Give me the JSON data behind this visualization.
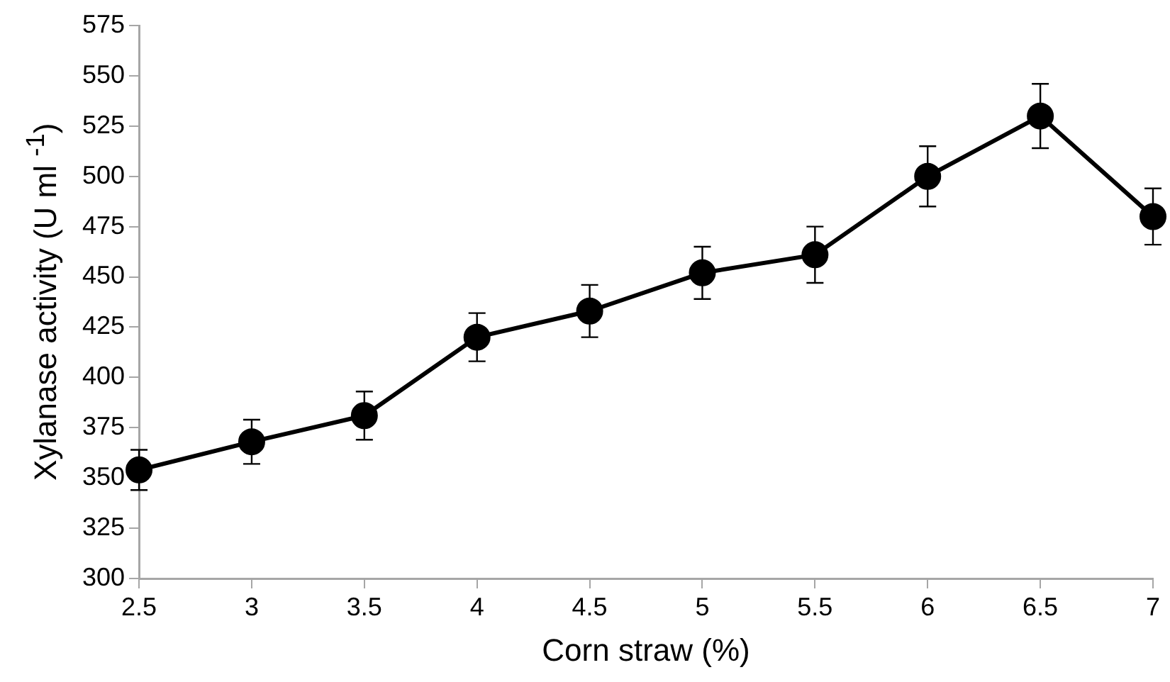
{
  "chart_data": {
    "type": "line",
    "xlabel": "Corn straw (%)",
    "ylabel": "Xylanase activity  (U ml $^{-1}$)",
    "x": [
      2.5,
      3,
      3.5,
      4,
      4.5,
      5,
      5.5,
      6,
      6.5,
      7
    ],
    "series": [
      {
        "color": "#000000",
        "values": [
          354,
          368,
          381,
          420,
          433,
          452,
          461,
          500,
          530,
          480
        ],
        "errors": [
          10,
          11,
          12,
          12,
          13,
          13,
          14,
          15,
          16,
          14
        ]
      }
    ],
    "xlim": [
      2.5,
      7
    ],
    "xticks": [
      2.5,
      3,
      3.5,
      4,
      4.5,
      5,
      5.5,
      6,
      6.5,
      7
    ],
    "ylim": [
      300,
      575
    ],
    "yticks": [
      300,
      325,
      350,
      375,
      400,
      425,
      450,
      475,
      500,
      525,
      550,
      575
    ],
    "grid": false,
    "legend": false,
    "marker": "circle",
    "line_style": "solid"
  }
}
